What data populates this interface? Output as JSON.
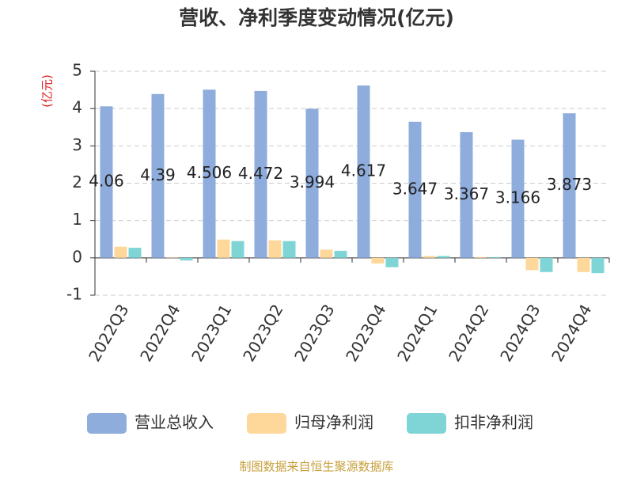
{
  "chart_data": {
    "type": "bar",
    "title": "营收、净利季度变动情况(亿元)",
    "y_label": "(亿元)",
    "categories": [
      "2022Q3",
      "2022Q4",
      "2023Q1",
      "2023Q2",
      "2023Q3",
      "2023Q4",
      "2024Q1",
      "2024Q2",
      "2024Q3",
      "2024Q4"
    ],
    "series": [
      {
        "name": "营业总收入",
        "color": "#8eacdc",
        "values": [
          4.06,
          4.39,
          4.506,
          4.472,
          3.994,
          4.617,
          3.647,
          3.367,
          3.166,
          3.873
        ],
        "show_labels": true
      },
      {
        "name": "归母净利润",
        "color": "#fdd89a",
        "values": [
          0.3,
          0.01,
          0.49,
          0.47,
          0.22,
          -0.15,
          0.05,
          0.02,
          -0.33,
          -0.38
        ]
      },
      {
        "name": "扣非净利润",
        "color": "#7fd5d5",
        "values": [
          0.27,
          -0.07,
          0.45,
          0.45,
          0.19,
          -0.25,
          0.05,
          0.02,
          -0.38,
          -0.41
        ]
      }
    ],
    "ylim": [
      -1,
      5
    ],
    "yticks": [
      -1,
      0,
      1,
      2,
      3,
      4,
      5
    ],
    "grid": true,
    "source": "制图数据来自恒生聚源数据库"
  }
}
